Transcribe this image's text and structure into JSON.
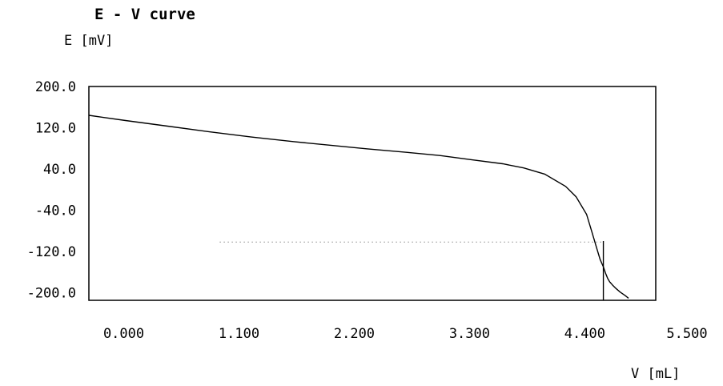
{
  "chart_data": {
    "type": "line",
    "title": "E - V curve",
    "ylabel": "E [mV]",
    "xlabel": "V [mL]",
    "x_ticks": [
      "0.000",
      "1.100",
      "2.200",
      "3.300",
      "4.400",
      "5.500"
    ],
    "y_ticks": [
      "200.0",
      "120.0",
      "40.0",
      "-40.0",
      "-120.0",
      "-200.0"
    ],
    "xlim": [
      -0.05,
      5.36
    ],
    "ylim": [
      -215,
      200
    ],
    "grid": false,
    "series": [
      {
        "x": [
          -0.05,
          0.3,
          0.7,
          1.1,
          1.5,
          1.9,
          2.2,
          2.6,
          3.0,
          3.3,
          3.6,
          3.9,
          4.1,
          4.3,
          4.5,
          4.6,
          4.7,
          4.75,
          4.8,
          4.83,
          4.86,
          4.88,
          4.9,
          4.92,
          4.95,
          4.98,
          5.02,
          5.07,
          5.1
        ],
        "y": [
          144,
          134,
          123,
          112,
          102,
          93,
          87,
          79,
          72,
          66,
          58,
          50,
          42,
          30,
          6,
          -14,
          -48,
          -82,
          -116,
          -136,
          -150,
          -162,
          -172,
          -179,
          -186,
          -192,
          -199,
          -206,
          -211
        ]
      }
    ],
    "dotted_reference": {
      "x_start": 1.2,
      "x_end": 4.85,
      "y": -102
    },
    "vertical_reference": {
      "x": 4.86
    }
  }
}
